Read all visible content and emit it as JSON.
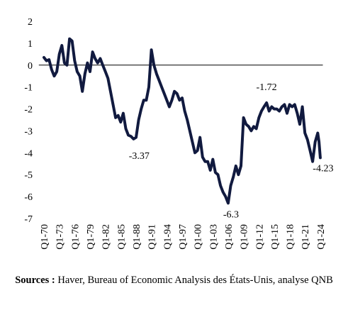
{
  "chart_data": {
    "type": "line",
    "x": [
      1970,
      1970.5,
      1971,
      1971.5,
      1972,
      1972.5,
      1973,
      1973.5,
      1974,
      1974.5,
      1975,
      1975.5,
      1976,
      1976.5,
      1977,
      1977.5,
      1978,
      1978.5,
      1979,
      1979.5,
      1980,
      1980.5,
      1981,
      1981.5,
      1982,
      1982.5,
      1983,
      1983.5,
      1984,
      1984.5,
      1985,
      1985.5,
      1986,
      1986.5,
      1987,
      1987.5,
      1988,
      1988.5,
      1989,
      1989.5,
      1990,
      1990.5,
      1991,
      1991.5,
      1992,
      1992.5,
      1993,
      1993.5,
      1994,
      1994.5,
      1995,
      1995.5,
      1996,
      1996.5,
      1997,
      1997.5,
      1998,
      1998.5,
      1999,
      1999.5,
      2000,
      2000.5,
      2001,
      2001.5,
      2002,
      2002.5,
      2003,
      2003.5,
      2004,
      2004.5,
      2005,
      2005.5,
      2006,
      2006.5,
      2007,
      2007.5,
      2008,
      2008.5,
      2009,
      2009.5,
      2010,
      2010.5,
      2011,
      2011.5,
      2012,
      2012.5,
      2013,
      2013.5,
      2014,
      2014.5,
      2015,
      2015.5,
      2016,
      2016.5,
      2017,
      2017.5,
      2018,
      2018.5,
      2019,
      2019.5,
      2020,
      2020.5,
      2021,
      2021.5,
      2022,
      2022.5,
      2023,
      2023.5,
      2023.75,
      2024
    ],
    "series": [
      {
        "color": "#111a3f",
        "values": [
          0.35,
          0.2,
          0.25,
          -0.2,
          -0.5,
          -0.3,
          0.5,
          0.9,
          0.1,
          0.0,
          1.2,
          1.1,
          0.2,
          -0.3,
          -0.5,
          -1.2,
          -0.4,
          0.1,
          -0.3,
          0.6,
          0.3,
          0.1,
          0.3,
          0.0,
          -0.3,
          -0.6,
          -1.2,
          -1.8,
          -2.4,
          -2.3,
          -2.6,
          -2.2,
          -2.9,
          -3.2,
          -3.25,
          -3.37,
          -3.3,
          -2.5,
          -2.0,
          -1.6,
          -1.6,
          -1.0,
          0.7,
          0.0,
          -0.4,
          -0.7,
          -1.0,
          -1.3,
          -1.6,
          -1.9,
          -1.6,
          -1.2,
          -1.3,
          -1.6,
          -1.5,
          -2.1,
          -2.5,
          -3.0,
          -3.5,
          -4.0,
          -3.9,
          -3.3,
          -4.2,
          -4.4,
          -4.4,
          -4.8,
          -4.3,
          -4.9,
          -5.0,
          -5.5,
          -5.8,
          -6.0,
          -6.3,
          -5.5,
          -5.1,
          -4.6,
          -5.0,
          -4.6,
          -2.4,
          -2.7,
          -2.8,
          -3.0,
          -2.8,
          -2.9,
          -2.4,
          -2.1,
          -1.9,
          -1.72,
          -2.1,
          -1.9,
          -2.0,
          -2.0,
          -2.1,
          -1.9,
          -1.8,
          -2.2,
          -1.8,
          -1.9,
          -1.8,
          -2.2,
          -2.7,
          -1.9,
          -3.1,
          -3.4,
          -3.9,
          -4.4,
          -3.5,
          -3.1,
          -3.5,
          -4.23
        ]
      }
    ],
    "annotations": [
      {
        "x": 1987.5,
        "y": -3.37
      },
      {
        "x": 2013.5,
        "y": -1.72
      },
      {
        "x": 2006,
        "y": -6.3
      },
      {
        "x": 2024,
        "y": -4.23
      }
    ],
    "xlim": [
      1969,
      2024.5
    ],
    "xticks": [
      {
        "value": 1970,
        "label": "Q1-70"
      },
      {
        "value": 1973,
        "label": "Q1-73"
      },
      {
        "value": 1976,
        "label": "Q1-76"
      },
      {
        "value": 1979,
        "label": "Q1-79"
      },
      {
        "value": 1982,
        "label": "Q1-82"
      },
      {
        "value": 1985,
        "label": "Q1-85"
      },
      {
        "value": 1988,
        "label": "Q1-88"
      },
      {
        "value": 1991,
        "label": "Q1-91"
      },
      {
        "value": 1994,
        "label": "Q1-94"
      },
      {
        "value": 1997,
        "label": "Q1-97"
      },
      {
        "value": 2000,
        "label": "Q1-00"
      },
      {
        "value": 2003,
        "label": "Q1-03"
      },
      {
        "value": 2006,
        "label": "Q1-06"
      },
      {
        "value": 2009,
        "label": "Q1-09"
      },
      {
        "value": 2012,
        "label": "Q1-12"
      },
      {
        "value": 2015,
        "label": "Q1-15"
      },
      {
        "value": 2018,
        "label": "Q1-18"
      },
      {
        "value": 2021,
        "label": "Q1-21"
      },
      {
        "value": 2024,
        "label": "Q1-24"
      }
    ],
    "ylim": [
      -7,
      2
    ],
    "yticks": [
      2,
      1,
      0,
      -1,
      -2,
      -3,
      -4,
      -5,
      -6,
      -7
    ],
    "grid": false,
    "source_label": "Sources :",
    "source": "Haver, Bureau of Economic Analysis des États-Unis, analyse QNB"
  }
}
